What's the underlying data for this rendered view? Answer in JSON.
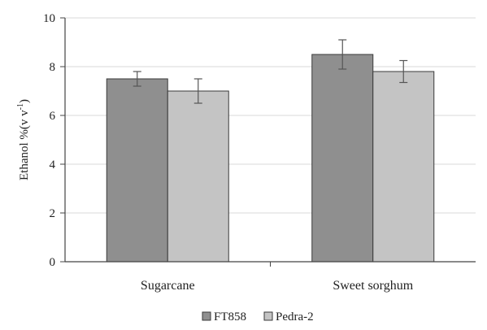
{
  "chart_data": {
    "type": "bar",
    "categories": [
      "Sugarcane",
      "Sweet sorghum"
    ],
    "series": [
      {
        "name": "FT858",
        "values": [
          7.5,
          8.5
        ],
        "errors": [
          0.3,
          0.6
        ],
        "color": "#8f8f8f"
      },
      {
        "name": "Pedra-2",
        "values": [
          7.0,
          7.8
        ],
        "errors": [
          0.5,
          0.45
        ],
        "color": "#c4c4c4"
      }
    ],
    "ylabel": "Ethanol %(v v",
    "ylabel_sup": "-1",
    "ylabel_close": ")",
    "ylim": [
      0,
      10
    ],
    "yticks": [
      0,
      2,
      4,
      6,
      8,
      10
    ],
    "grid": true,
    "legend_position": "bottom-center"
  }
}
